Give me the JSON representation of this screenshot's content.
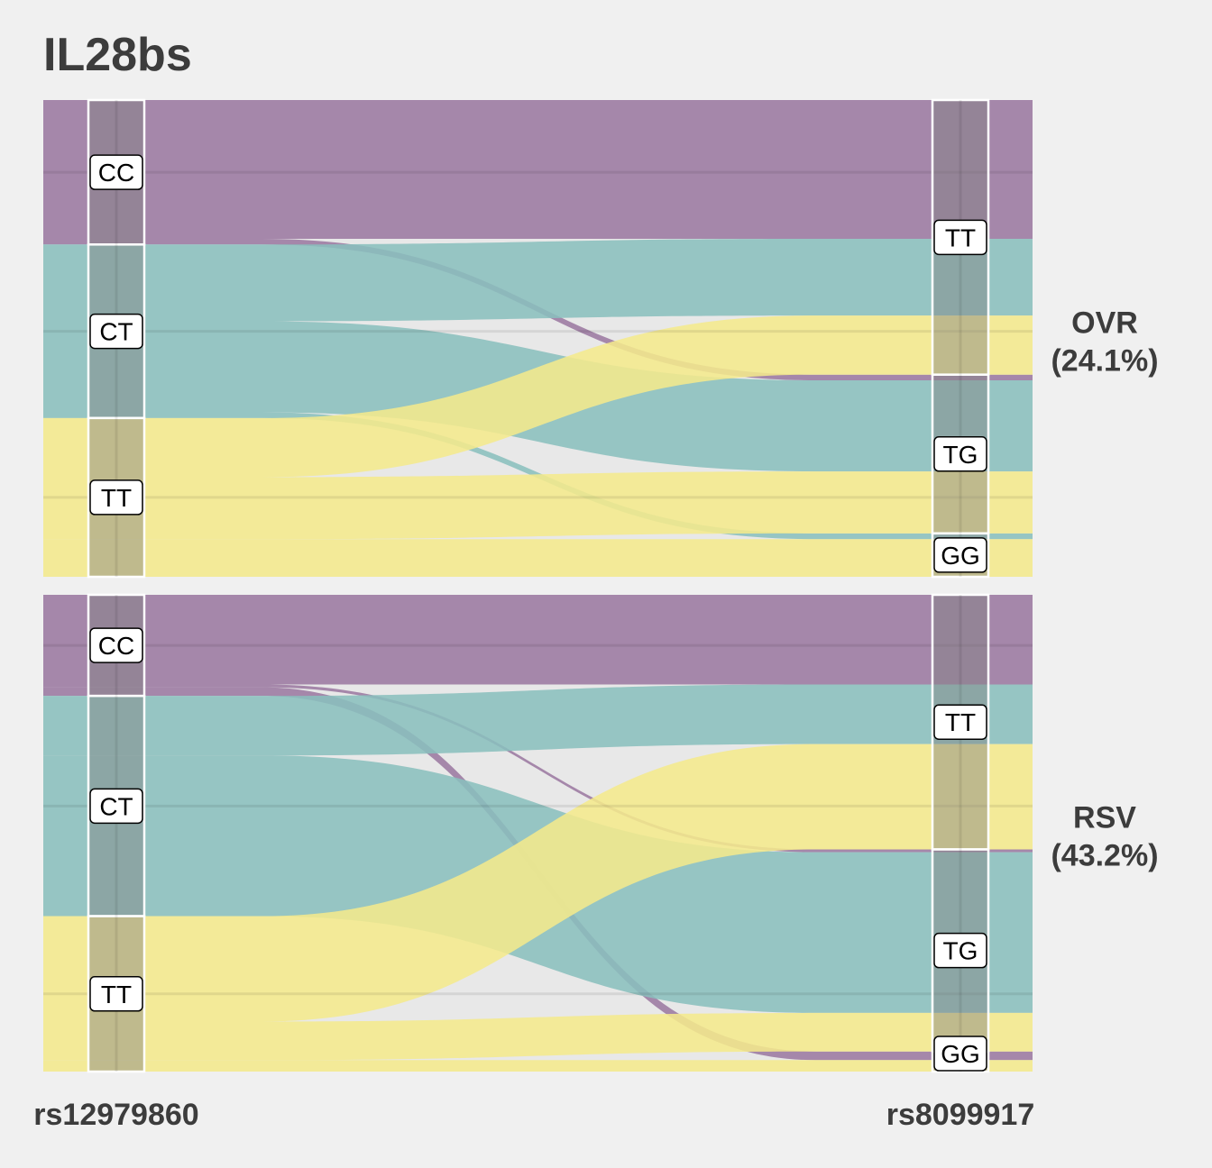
{
  "chart_data": {
    "type": "alluvial",
    "title": "IL28bs",
    "axes": [
      "rs12979860",
      "rs8099917"
    ],
    "colors": {
      "CC": "#9b79a0",
      "CT": "#8abfbd",
      "TT": "#f4e98c"
    },
    "panels": [
      {
        "label": "OVR",
        "pct": "(24.1%)",
        "left_strata": [
          {
            "name": "CC",
            "value": 30.3
          },
          {
            "name": "CT",
            "value": 36.4
          },
          {
            "name": "TT",
            "value": 33.3
          }
        ],
        "right_strata": [
          {
            "name": "TT",
            "value": 57.6
          },
          {
            "name": "TG",
            "value": 33.3
          },
          {
            "name": "GG",
            "value": 9.1
          }
        ],
        "flows": [
          {
            "from": "CC",
            "to": "TT",
            "value": 29.1
          },
          {
            "from": "CC",
            "to": "TG",
            "value": 1.2
          },
          {
            "from": "CT",
            "to": "TT",
            "value": 16.1
          },
          {
            "from": "CT",
            "to": "TG",
            "value": 19.1
          },
          {
            "from": "CT",
            "to": "GG",
            "value": 1.2
          },
          {
            "from": "TT",
            "to": "TT",
            "value": 12.4
          },
          {
            "from": "TT",
            "to": "TG",
            "value": 13.0
          },
          {
            "from": "TT",
            "to": "GG",
            "value": 7.9
          }
        ]
      },
      {
        "label": "RSV",
        "pct": "(43.2%)",
        "left_strata": [
          {
            "name": "CC",
            "value": 21.2
          },
          {
            "name": "CT",
            "value": 46.2
          },
          {
            "name": "TT",
            "value": 32.6
          }
        ],
        "right_strata": [
          {
            "name": "TT",
            "value": 53.4
          },
          {
            "name": "TG",
            "value": 42.4
          },
          {
            "name": "GG",
            "value": 4.2
          }
        ],
        "flows": [
          {
            "from": "CC",
            "to": "TT",
            "value": 18.8
          },
          {
            "from": "CC",
            "to": "TG",
            "value": 0.6
          },
          {
            "from": "CC",
            "to": "GG",
            "value": 1.8
          },
          {
            "from": "CT",
            "to": "TT",
            "value": 12.5
          },
          {
            "from": "CT",
            "to": "TG",
            "value": 33.7
          },
          {
            "from": "TT",
            "to": "TT",
            "value": 22.1
          },
          {
            "from": "TT",
            "to": "TG",
            "value": 8.1
          },
          {
            "from": "TT",
            "to": "GG",
            "value": 2.4
          }
        ]
      }
    ]
  }
}
